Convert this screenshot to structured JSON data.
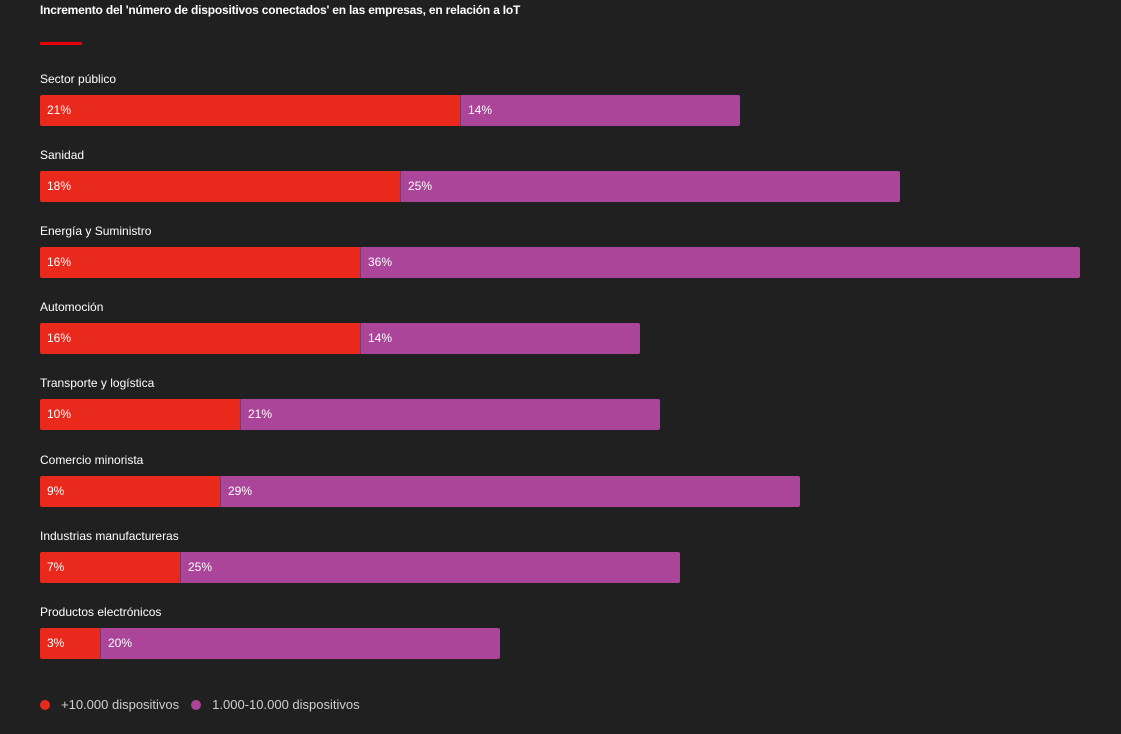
{
  "chart_data": {
    "type": "bar",
    "title": "Incremento del 'número de dispositivos conectados' en las empresas, en relación a IoT",
    "categories": [
      "Sector público",
      "Sanidad",
      "Energía y Suministro",
      "Automoción",
      "Transporte y logística",
      "Comercio minorista",
      "Industrias manufactureras",
      "Productos electrónicos"
    ],
    "series": [
      {
        "name": "+10.000 dispositivos",
        "color": "#e8291c",
        "values": [
          21,
          18,
          16,
          16,
          10,
          9,
          7,
          3
        ],
        "labels": [
          "21%",
          "18%",
          "16%",
          "16%",
          "10%",
          "9%",
          "7%",
          "3%"
        ]
      },
      {
        "name": "1.000-10.000 dispositivos",
        "color": "#ab4599",
        "values": [
          14,
          25,
          36,
          14,
          21,
          29,
          25,
          20
        ],
        "labels": [
          "14%",
          "25%",
          "36%",
          "14%",
          "21%",
          "29%",
          "25%",
          "20%"
        ]
      }
    ],
    "stacked": true,
    "orientation": "horizontal",
    "legend_position": "bottom-left",
    "grid": false
  },
  "accent_color": "#e60000"
}
